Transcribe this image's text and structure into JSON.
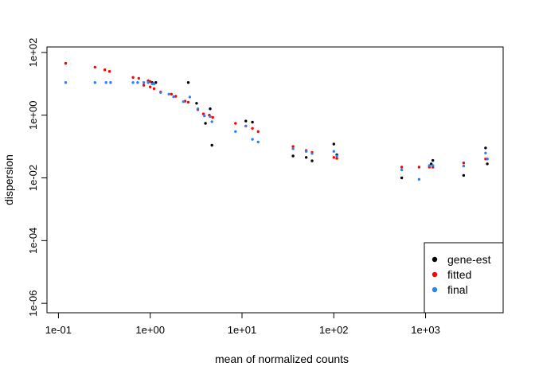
{
  "chart_data": {
    "type": "scatter",
    "title": "",
    "xlabel": "mean of normalized counts",
    "ylabel": "dispersion",
    "x_scale": "log",
    "y_scale": "log",
    "xlim": [
      0.075,
      7000
    ],
    "ylim": [
      5e-07,
      150
    ],
    "x_ticks": [
      0.1,
      1,
      10,
      100,
      1000
    ],
    "x_tick_labels": [
      "1e-01",
      "1e+00",
      "1e+01",
      "1e+02",
      "1e+03"
    ],
    "y_ticks": [
      1e-06,
      0.0001,
      0.01,
      1,
      100
    ],
    "y_tick_labels": [
      "1e-06",
      "1e-04",
      "1e-02",
      "1e+00",
      "1e+02"
    ],
    "legend_position": "bottom-right",
    "series": [
      {
        "name": "gene-est",
        "color": "#000000",
        "points": [
          [
            1.05,
            11
          ],
          [
            1.15,
            11
          ],
          [
            2.6,
            11
          ],
          [
            3.2,
            2.4
          ],
          [
            4.0,
            0.55
          ],
          [
            4.5,
            1.6
          ],
          [
            4.7,
            0.11
          ],
          [
            11,
            0.65
          ],
          [
            13,
            0.6
          ],
          [
            36,
            0.05
          ],
          [
            50,
            0.045
          ],
          [
            58,
            0.035
          ],
          [
            100,
            0.12
          ],
          [
            108,
            0.055
          ],
          [
            550,
            0.01
          ],
          [
            1150,
            0.028
          ],
          [
            1200,
            0.036
          ],
          [
            2600,
            0.012
          ],
          [
            4500,
            0.09
          ],
          [
            4700,
            0.028
          ]
        ]
      },
      {
        "name": "fitted",
        "color": "#ff0000",
        "points": [
          [
            0.12,
            45
          ],
          [
            0.25,
            34
          ],
          [
            0.32,
            28
          ],
          [
            0.36,
            25
          ],
          [
            0.65,
            16
          ],
          [
            0.75,
            15
          ],
          [
            0.95,
            12.5
          ],
          [
            1.0,
            11.8
          ],
          [
            0.85,
            9
          ],
          [
            1.0,
            8
          ],
          [
            1.1,
            7
          ],
          [
            1.3,
            5.5
          ],
          [
            1.7,
            4.7
          ],
          [
            1.9,
            4.0
          ],
          [
            2.4,
            2.8
          ],
          [
            2.6,
            2.6
          ],
          [
            3.3,
            1.5
          ],
          [
            3.8,
            1.1
          ],
          [
            4.4,
            1.0
          ],
          [
            4.8,
            0.85
          ],
          [
            8.5,
            0.55
          ],
          [
            11,
            0.45
          ],
          [
            13,
            0.38
          ],
          [
            15,
            0.3
          ],
          [
            36,
            0.1
          ],
          [
            50,
            0.075
          ],
          [
            58,
            0.065
          ],
          [
            100,
            0.045
          ],
          [
            108,
            0.042
          ],
          [
            550,
            0.022
          ],
          [
            850,
            0.022
          ],
          [
            1100,
            0.022
          ],
          [
            1200,
            0.022
          ],
          [
            2600,
            0.03
          ],
          [
            4500,
            0.04
          ],
          [
            4700,
            0.04
          ]
        ]
      },
      {
        "name": "final",
        "color": "#2a82f5",
        "points": [
          [
            0.12,
            11
          ],
          [
            0.25,
            11
          ],
          [
            0.33,
            11
          ],
          [
            0.37,
            11
          ],
          [
            0.65,
            11
          ],
          [
            0.73,
            11
          ],
          [
            0.85,
            11
          ],
          [
            0.95,
            11
          ],
          [
            1.05,
            10
          ],
          [
            1.1,
            10
          ],
          [
            1.3,
            5.3
          ],
          [
            1.6,
            4.7
          ],
          [
            1.8,
            3.9
          ],
          [
            2.3,
            2.7
          ],
          [
            2.7,
            3.8
          ],
          [
            3.3,
            1.6
          ],
          [
            3.9,
            0.95
          ],
          [
            4.5,
            0.9
          ],
          [
            4.7,
            0.62
          ],
          [
            8.5,
            0.3
          ],
          [
            11,
            0.45
          ],
          [
            13,
            0.17
          ],
          [
            15,
            0.14
          ],
          [
            36,
            0.085
          ],
          [
            50,
            0.07
          ],
          [
            58,
            0.06
          ],
          [
            100,
            0.07
          ],
          [
            108,
            0.05
          ],
          [
            550,
            0.018
          ],
          [
            850,
            0.009
          ],
          [
            1100,
            0.025
          ],
          [
            1200,
            0.025
          ],
          [
            2600,
            0.024
          ],
          [
            4500,
            0.062
          ],
          [
            4700,
            0.04
          ]
        ]
      }
    ]
  }
}
